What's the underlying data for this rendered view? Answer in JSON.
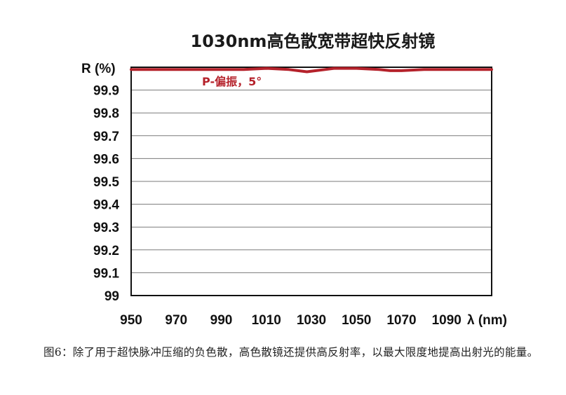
{
  "colors": {
    "series": "#b5222b",
    "grid": "#7a7a7a",
    "frame": "#111111",
    "text": "#111111"
  },
  "chart_data": {
    "type": "line",
    "title": "1030nm高色散宽带超快反射镜",
    "xlabel": "λ (nm)",
    "ylabel": "R (%)",
    "xlim": [
      950,
      1110
    ],
    "ylim": [
      99,
      100
    ],
    "x_ticks": [
      "950",
      "970",
      "990",
      "1010",
      "1030",
      "1050",
      "1070",
      "1090"
    ],
    "y_ticks": [
      "99",
      "99.1",
      "99.2",
      "99.3",
      "99.4",
      "99.5",
      "99.6",
      "99.7",
      "99.8",
      "99.9"
    ],
    "grid": true,
    "annotation": "P-偏振，5°",
    "series": [
      {
        "name": "P-偏振，5°",
        "x": [
          950,
          960,
          970,
          980,
          990,
          1000,
          1010,
          1020,
          1024,
          1028,
          1032,
          1036,
          1040,
          1050,
          1060,
          1065,
          1070,
          1080,
          1090,
          1100,
          1110
        ],
        "y": [
          99.99,
          99.99,
          99.99,
          99.99,
          99.99,
          99.99,
          99.995,
          99.99,
          99.985,
          99.98,
          99.985,
          99.99,
          99.995,
          99.995,
          99.99,
          99.985,
          99.985,
          99.99,
          99.99,
          99.99,
          99.99
        ]
      }
    ]
  },
  "caption": "图6：除了用于超快脉冲压缩的负色散，高色散镜还提供高反射率，以最大限度地提高出射光的能量。"
}
